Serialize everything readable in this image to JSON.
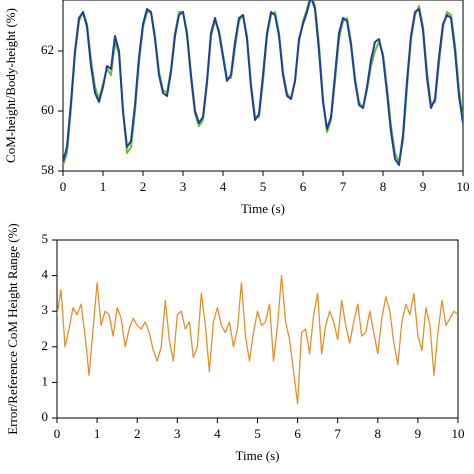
{
  "chart_data": [
    {
      "type": "line",
      "ylabel": "CoM-height/Body-height (%)",
      "xlabel": "Time (s)",
      "x": [
        0,
        0.1,
        0.2,
        0.3,
        0.4,
        0.5,
        0.6,
        0.7,
        0.8,
        0.9,
        1,
        1.1,
        1.2,
        1.3,
        1.4,
        1.5,
        1.6,
        1.7,
        1.8,
        1.9,
        2,
        2.1,
        2.2,
        2.3,
        2.4,
        2.5,
        2.6,
        2.7,
        2.8,
        2.9,
        3,
        3.1,
        3.2,
        3.3,
        3.4,
        3.5,
        3.6,
        3.7,
        3.8,
        3.9,
        4,
        4.1,
        4.2,
        4.3,
        4.4,
        4.5,
        4.6,
        4.7,
        4.8,
        4.9,
        5,
        5.1,
        5.2,
        5.3,
        5.4,
        5.5,
        5.6,
        5.7,
        5.8,
        5.9,
        6,
        6.1,
        6.2,
        6.3,
        6.4,
        6.5,
        6.6,
        6.7,
        6.8,
        6.9,
        7,
        7.1,
        7.2,
        7.3,
        7.4,
        7.5,
        7.6,
        7.7,
        7.8,
        7.9,
        8,
        8.1,
        8.2,
        8.3,
        8.4,
        8.5,
        8.6,
        8.7,
        8.8,
        8.9,
        9,
        9.1,
        9.2,
        9.3,
        9.4,
        9.5,
        9.6,
        9.7,
        9.8,
        9.9,
        10
      ],
      "series": [
        {
          "color": "#6cbf2a",
          "values": [
            58.2,
            58.6,
            60.1,
            61.9,
            63.0,
            63.3,
            62.9,
            61.7,
            60.8,
            60.4,
            60.9,
            61.4,
            61.2,
            62.3,
            61.9,
            60.0,
            58.6,
            58.8,
            60.0,
            61.6,
            62.8,
            63.3,
            63.3,
            62.5,
            61.3,
            60.7,
            60.6,
            61.4,
            62.6,
            63.3,
            63.3,
            62.5,
            61.1,
            59.9,
            59.5,
            59.7,
            60.9,
            62.5,
            63.0,
            62.7,
            61.9,
            61.1,
            61.1,
            62.1,
            63.0,
            63.2,
            62.5,
            60.9,
            59.8,
            59.8,
            61.0,
            62.5,
            63.2,
            63.3,
            62.6,
            61.3,
            60.6,
            60.4,
            61.0,
            62.3,
            63.0,
            63.4,
            63.9,
            63.5,
            62.2,
            60.4,
            59.3,
            59.7,
            61.0,
            62.4,
            63.0,
            63.1,
            62.3,
            61.1,
            60.3,
            60.1,
            60.7,
            61.5,
            62.0,
            62.3,
            61.9,
            60.8,
            59.5,
            58.6,
            58.3,
            59.0,
            60.8,
            62.4,
            63.2,
            63.5,
            62.8,
            61.3,
            60.2,
            60.3,
            61.6,
            62.8,
            63.3,
            63.2,
            62.2,
            60.7,
            59.7
          ]
        },
        {
          "color": "#1f3f9e",
          "values": [
            58.3,
            58.8,
            60.3,
            62.0,
            63.1,
            63.3,
            62.8,
            61.5,
            60.6,
            60.3,
            60.8,
            61.5,
            61.4,
            62.5,
            62.0,
            60.0,
            58.8,
            59.0,
            60.2,
            61.8,
            62.9,
            63.4,
            63.3,
            62.4,
            61.2,
            60.6,
            60.5,
            61.3,
            62.5,
            63.2,
            63.3,
            62.6,
            61.2,
            60.0,
            59.6,
            59.8,
            61.0,
            62.6,
            63.1,
            62.6,
            61.8,
            61.0,
            61.2,
            62.3,
            63.1,
            63.2,
            62.4,
            60.8,
            59.7,
            59.9,
            61.2,
            62.6,
            63.3,
            63.2,
            62.5,
            61.2,
            60.5,
            60.4,
            61.0,
            62.4,
            62.9,
            63.3,
            63.8,
            63.4,
            62.0,
            60.3,
            59.4,
            59.8,
            61.2,
            62.6,
            63.1,
            63.0,
            62.2,
            61.0,
            60.2,
            60.1,
            60.8,
            61.7,
            62.3,
            62.4,
            61.8,
            60.6,
            59.3,
            58.4,
            58.2,
            59.2,
            61.0,
            62.5,
            63.3,
            63.4,
            62.7,
            61.1,
            60.1,
            60.4,
            61.8,
            62.9,
            63.2,
            63.1,
            62.0,
            60.5,
            59.6
          ]
        }
      ],
      "xlim": [
        0,
        10
      ],
      "xticks": [
        0,
        1,
        2,
        3,
        4,
        5,
        6,
        7,
        8,
        9,
        10
      ],
      "ylim": [
        58,
        63.7
      ],
      "yticks": [
        58,
        60,
        62
      ]
    },
    {
      "type": "line",
      "ylabel": "Error/Reference CoM Height Range (%)",
      "xlabel": "Time (s)",
      "x": [
        0,
        0.1,
        0.2,
        0.3,
        0.4,
        0.5,
        0.6,
        0.7,
        0.8,
        0.9,
        1,
        1.1,
        1.2,
        1.3,
        1.4,
        1.5,
        1.6,
        1.7,
        1.8,
        1.9,
        2,
        2.1,
        2.2,
        2.3,
        2.4,
        2.5,
        2.6,
        2.7,
        2.8,
        2.9,
        3,
        3.1,
        3.2,
        3.3,
        3.4,
        3.5,
        3.6,
        3.7,
        3.8,
        3.9,
        4,
        4.1,
        4.2,
        4.3,
        4.4,
        4.5,
        4.6,
        4.7,
        4.8,
        4.9,
        5,
        5.1,
        5.2,
        5.3,
        5.4,
        5.5,
        5.6,
        5.7,
        5.8,
        5.9,
        6,
        6.1,
        6.2,
        6.3,
        6.4,
        6.5,
        6.6,
        6.7,
        6.8,
        6.9,
        7,
        7.1,
        7.2,
        7.3,
        7.4,
        7.5,
        7.6,
        7.7,
        7.8,
        7.9,
        8,
        8.1,
        8.2,
        8.3,
        8.4,
        8.5,
        8.6,
        8.7,
        8.8,
        8.9,
        9,
        9.1,
        9.2,
        9.3,
        9.4,
        9.5,
        9.6,
        9.7,
        9.8,
        9.9,
        10
      ],
      "series": [
        {
          "color": "#e8902a",
          "values": [
            2.9,
            3.6,
            2.0,
            2.5,
            3.1,
            2.9,
            3.2,
            2.3,
            1.2,
            2.5,
            3.8,
            2.6,
            3.0,
            2.9,
            2.3,
            3.1,
            2.8,
            2.0,
            2.5,
            2.8,
            2.6,
            2.5,
            2.7,
            2.4,
            1.9,
            1.6,
            2.0,
            3.3,
            2.2,
            1.6,
            2.9,
            3.0,
            2.5,
            2.7,
            1.7,
            2.0,
            3.5,
            2.6,
            1.3,
            2.7,
            3.1,
            2.6,
            2.4,
            2.7,
            2.0,
            2.5,
            3.8,
            2.3,
            1.6,
            2.4,
            3.0,
            2.6,
            2.7,
            3.2,
            1.6,
            2.6,
            4.0,
            2.7,
            2.2,
            1.3,
            0.4,
            2.4,
            2.5,
            1.8,
            2.9,
            3.5,
            1.8,
            2.6,
            3.0,
            2.7,
            2.2,
            3.3,
            2.6,
            2.1,
            2.7,
            3.2,
            2.3,
            2.4,
            3.0,
            2.4,
            1.8,
            2.8,
            3.4,
            3.0,
            2.1,
            1.5,
            2.7,
            3.2,
            2.9,
            3.5,
            2.3,
            1.9,
            3.1,
            2.6,
            1.2,
            2.4,
            3.3,
            2.6,
            2.8,
            3.0,
            2.9
          ]
        }
      ],
      "xlim": [
        0,
        10
      ],
      "xticks": [
        0,
        1,
        2,
        3,
        4,
        5,
        6,
        7,
        8,
        9,
        10
      ],
      "ylim": [
        0,
        5
      ],
      "yticks": [
        0,
        1,
        2,
        3,
        4,
        5
      ]
    }
  ]
}
